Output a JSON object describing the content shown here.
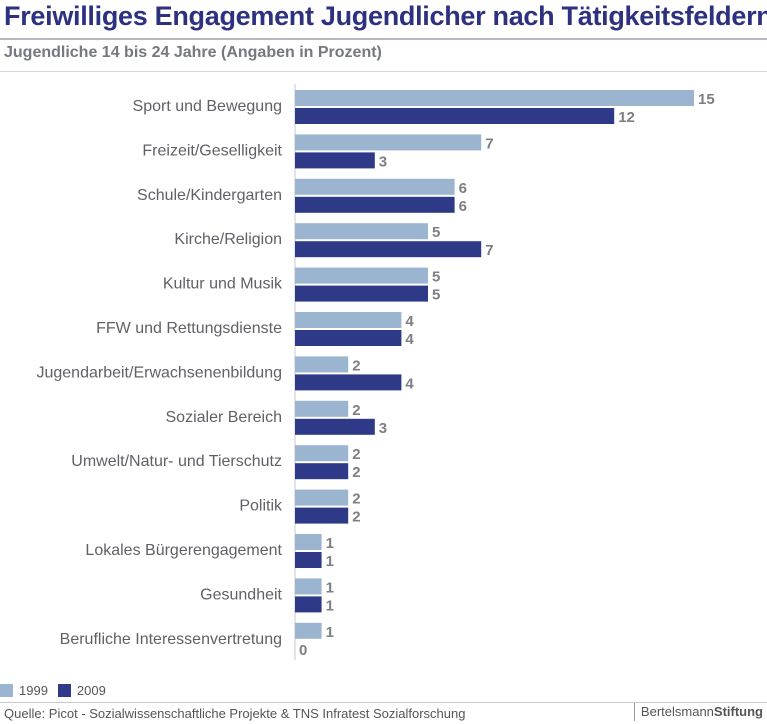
{
  "header": {
    "title": "Freiwilliges Engagement Jugendlicher nach Tätigkeitsfeldern",
    "subtitle": "Jugendliche 14 bis 24 Jahre (Angaben in Prozent)"
  },
  "chart_data": {
    "type": "bar",
    "orientation": "horizontal",
    "categories": [
      "Sport und Bewegung",
      "Freizeit/Geselligkeit",
      "Schule/Kindergarten",
      "Kirche/Religion",
      "Kultur und Musik",
      "FFW und Rettungsdienste",
      "Jugendarbeit/Erwachsenenbildung",
      "Sozialer Bereich",
      "Umwelt/Natur- und Tierschutz",
      "Politik",
      "Lokales Bürgerengagement",
      "Gesundheit",
      "Berufliche Interessenvertretung"
    ],
    "series": [
      {
        "name": "1999",
        "color": "#9bb5d1",
        "values": [
          15,
          7,
          6,
          5,
          5,
          4,
          2,
          2,
          2,
          2,
          1,
          1,
          1
        ]
      },
      {
        "name": "2009",
        "color": "#2e3a87",
        "values": [
          12,
          3,
          6,
          7,
          5,
          4,
          4,
          3,
          2,
          2,
          1,
          1,
          0
        ]
      }
    ],
    "title": "Freiwilliges Engagement Jugendlicher nach Tätigkeitsfeldern",
    "xlim": [
      0,
      15
    ],
    "grid": false,
    "legend_position": "bottom-left"
  },
  "footer": {
    "source": "Quelle: Picot - Sozialwissenschaftliche Projekte & TNS Infratest Sozialforschung",
    "logo_part1": "Bertelsmann",
    "logo_part2": "Stiftung"
  }
}
